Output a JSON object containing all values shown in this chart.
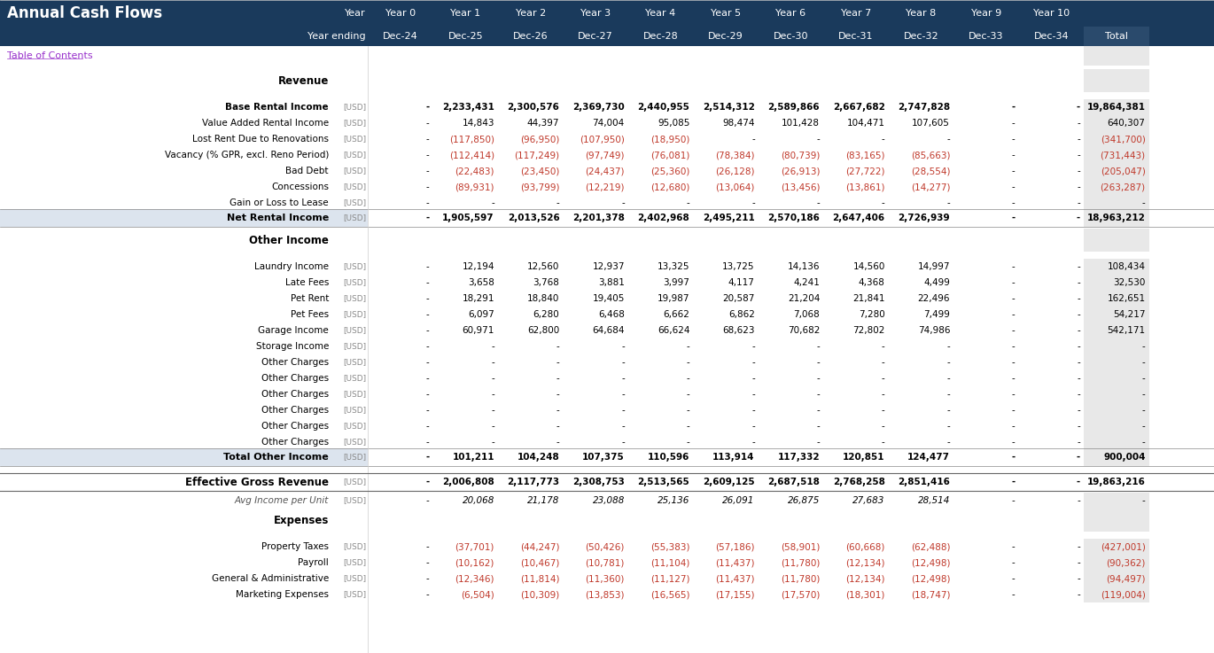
{
  "title": "Annual Cash Flows",
  "header_bg": "#1a3a5c",
  "header_text_color": "#ffffff",
  "subheader_bg": "#1a3a5c",
  "total_col_bg": "#e8e8e8",
  "subtotal_bg": "#d0d8e4",
  "section_header_color": "#1a3a5c",
  "link_color": "#9933cc",
  "negative_color": "#c0392b",
  "normal_color": "#000000",
  "bold_rows_bg": "#c8d4e0",
  "col_headers_row1": [
    "",
    "Year",
    "Year 0",
    "Year 1",
    "Year 2",
    "Year 3",
    "Year 4",
    "Year 5",
    "Year 6",
    "Year 7",
    "Year 8",
    "Year 9",
    "Year 10",
    ""
  ],
  "col_headers_row2": [
    "",
    "Year ending",
    "Dec-24",
    "Dec-25",
    "Dec-26",
    "Dec-27",
    "Dec-28",
    "Dec-29",
    "Dec-30",
    "Dec-31",
    "Dec-32",
    "Dec-33",
    "Dec-34",
    "Total"
  ],
  "rows": [
    {
      "label": "Table of Contents",
      "type": "link",
      "unit": "",
      "values": [
        "",
        "",
        "",
        "",
        "",
        "",
        "",
        "",
        "",
        "",
        "",
        ""
      ]
    },
    {
      "label": "",
      "type": "spacer",
      "unit": "",
      "values": [
        "",
        "",
        "",
        "",
        "",
        "",
        "",
        "",
        "",
        "",
        "",
        ""
      ]
    },
    {
      "label": "Revenue",
      "type": "section_header",
      "unit": "",
      "values": [
        "",
        "",
        "",
        "",
        "",
        "",
        "",
        "",
        "",
        "",
        "",
        ""
      ]
    },
    {
      "label": "Base Rental Income",
      "type": "data_bold",
      "unit": "[USD]",
      "values": [
        "-",
        "2,233,431",
        "2,300,576",
        "2,369,730",
        "2,440,955",
        "2,514,312",
        "2,589,866",
        "2,667,682",
        "2,747,828",
        "-",
        "-",
        "19,864,381"
      ]
    },
    {
      "label": "Value Added Rental Income",
      "type": "data",
      "unit": "[USD]",
      "values": [
        "-",
        "14,843",
        "44,397",
        "74,004",
        "95,085",
        "98,474",
        "101,428",
        "104,471",
        "107,605",
        "-",
        "-",
        "640,307"
      ]
    },
    {
      "label": "Lost Rent Due to Renovations",
      "type": "data",
      "unit": "[USD]",
      "values": [
        "-",
        "(117,850)",
        "(96,950)",
        "(107,950)",
        "(18,950)",
        "-",
        "-",
        "-",
        "-",
        "-",
        "-",
        "(341,700)"
      ]
    },
    {
      "label": "Vacancy (% GPR, excl. Reno Period)",
      "type": "data",
      "unit": "[USD]",
      "values": [
        "-",
        "(112,414)",
        "(117,249)",
        "(97,749)",
        "(76,081)",
        "(78,384)",
        "(80,739)",
        "(83,165)",
        "(85,663)",
        "-",
        "-",
        "(731,443)"
      ]
    },
    {
      "label": "Bad Debt",
      "type": "data",
      "unit": "[USD]",
      "values": [
        "-",
        "(22,483)",
        "(23,450)",
        "(24,437)",
        "(25,360)",
        "(26,128)",
        "(26,913)",
        "(27,722)",
        "(28,554)",
        "-",
        "-",
        "(205,047)"
      ]
    },
    {
      "label": "Concessions",
      "type": "data",
      "unit": "[USD]",
      "values": [
        "-",
        "(89,931)",
        "(93,799)",
        "(12,219)",
        "(12,680)",
        "(13,064)",
        "(13,456)",
        "(13,861)",
        "(14,277)",
        "-",
        "-",
        "(263,287)"
      ]
    },
    {
      "label": "Gain or Loss to Lease",
      "type": "data",
      "unit": "[USD]",
      "values": [
        "-",
        "-",
        "-",
        "-",
        "-",
        "-",
        "-",
        "-",
        "-",
        "-",
        "-",
        "-"
      ]
    },
    {
      "label": "Net Rental Income",
      "type": "subtotal",
      "unit": "[USD]",
      "values": [
        "-",
        "1,905,597",
        "2,013,526",
        "2,201,378",
        "2,402,968",
        "2,495,211",
        "2,570,186",
        "2,647,406",
        "2,726,939",
        "-",
        "-",
        "18,963,212"
      ]
    },
    {
      "label": "",
      "type": "spacer",
      "unit": "",
      "values": [
        "",
        "",
        "",
        "",
        "",
        "",
        "",
        "",
        "",
        "",
        "",
        ""
      ]
    },
    {
      "label": "Other Income",
      "type": "section_header",
      "unit": "",
      "values": [
        "",
        "",
        "",
        "",
        "",
        "",
        "",
        "",
        "",
        "",
        "",
        ""
      ]
    },
    {
      "label": "Laundry Income",
      "type": "data",
      "unit": "[USD]",
      "values": [
        "-",
        "12,194",
        "12,560",
        "12,937",
        "13,325",
        "13,725",
        "14,136",
        "14,560",
        "14,997",
        "-",
        "-",
        "108,434"
      ]
    },
    {
      "label": "Late Fees",
      "type": "data",
      "unit": "[USD]",
      "values": [
        "-",
        "3,658",
        "3,768",
        "3,881",
        "3,997",
        "4,117",
        "4,241",
        "4,368",
        "4,499",
        "-",
        "-",
        "32,530"
      ]
    },
    {
      "label": "Pet Rent",
      "type": "data",
      "unit": "[USD]",
      "values": [
        "-",
        "18,291",
        "18,840",
        "19,405",
        "19,987",
        "20,587",
        "21,204",
        "21,841",
        "22,496",
        "-",
        "-",
        "162,651"
      ]
    },
    {
      "label": "Pet Fees",
      "type": "data",
      "unit": "[USD]",
      "values": [
        "-",
        "6,097",
        "6,280",
        "6,468",
        "6,662",
        "6,862",
        "7,068",
        "7,280",
        "7,499",
        "-",
        "-",
        "54,217"
      ]
    },
    {
      "label": "Garage Income",
      "type": "data",
      "unit": "[USD]",
      "values": [
        "-",
        "60,971",
        "62,800",
        "64,684",
        "66,624",
        "68,623",
        "70,682",
        "72,802",
        "74,986",
        "-",
        "-",
        "542,171"
      ]
    },
    {
      "label": "Storage Income",
      "type": "data",
      "unit": "[USD]",
      "values": [
        "-",
        "-",
        "-",
        "-",
        "-",
        "-",
        "-",
        "-",
        "-",
        "-",
        "-",
        "-"
      ]
    },
    {
      "label": "Other Charges",
      "type": "data",
      "unit": "[USD]",
      "values": [
        "-",
        "-",
        "-",
        "-",
        "-",
        "-",
        "-",
        "-",
        "-",
        "-",
        "-",
        "-"
      ]
    },
    {
      "label": "Other Charges",
      "type": "data",
      "unit": "[USD]",
      "values": [
        "-",
        "-",
        "-",
        "-",
        "-",
        "-",
        "-",
        "-",
        "-",
        "-",
        "-",
        "-"
      ]
    },
    {
      "label": "Other Charges",
      "type": "data",
      "unit": "[USD]",
      "values": [
        "-",
        "-",
        "-",
        "-",
        "-",
        "-",
        "-",
        "-",
        "-",
        "-",
        "-",
        "-"
      ]
    },
    {
      "label": "Other Charges",
      "type": "data",
      "unit": "[USD]",
      "values": [
        "-",
        "-",
        "-",
        "-",
        "-",
        "-",
        "-",
        "-",
        "-",
        "-",
        "-",
        "-"
      ]
    },
    {
      "label": "Other Charges",
      "type": "data",
      "unit": "[USD]",
      "values": [
        "-",
        "-",
        "-",
        "-",
        "-",
        "-",
        "-",
        "-",
        "-",
        "-",
        "-",
        "-"
      ]
    },
    {
      "label": "Other Charges",
      "type": "data",
      "unit": "[USD]",
      "values": [
        "-",
        "-",
        "-",
        "-",
        "-",
        "-",
        "-",
        "-",
        "-",
        "-",
        "-",
        "-"
      ]
    },
    {
      "label": "Total Other Income",
      "type": "subtotal",
      "unit": "[USD]",
      "values": [
        "-",
        "101,211",
        "104,248",
        "107,375",
        "110,596",
        "113,914",
        "117,332",
        "120,851",
        "124,477",
        "-",
        "-",
        "900,004"
      ]
    },
    {
      "label": "",
      "type": "spacer",
      "unit": "",
      "values": [
        "",
        "",
        "",
        "",
        "",
        "",
        "",
        "",
        "",
        "",
        "",
        ""
      ]
    },
    {
      "label": "Effective Gross Revenue",
      "type": "total",
      "unit": "[USD]",
      "values": [
        "-",
        "2,006,808",
        "2,117,773",
        "2,308,753",
        "2,513,565",
        "2,609,125",
        "2,687,518",
        "2,768,258",
        "2,851,416",
        "-",
        "-",
        "19,863,216"
      ]
    },
    {
      "label": "Avg Income per Unit",
      "type": "italic",
      "unit": "[USD]",
      "values": [
        "-",
        "20,068",
        "21,178",
        "23,088",
        "25,136",
        "26,091",
        "26,875",
        "27,683",
        "28,514",
        "-",
        "-",
        "-"
      ]
    },
    {
      "label": "",
      "type": "spacer",
      "unit": "",
      "values": [
        "",
        "",
        "",
        "",
        "",
        "",
        "",
        "",
        "",
        "",
        "",
        ""
      ]
    },
    {
      "label": "Expenses",
      "type": "section_header",
      "unit": "",
      "values": [
        "",
        "",
        "",
        "",
        "",
        "",
        "",
        "",
        "",
        "",
        "",
        ""
      ]
    },
    {
      "label": "Property Taxes",
      "type": "data",
      "unit": "[USD]",
      "values": [
        "-",
        "(37,701)",
        "(44,247)",
        "(50,426)",
        "(55,383)",
        "(57,186)",
        "(58,901)",
        "(60,668)",
        "(62,488)",
        "-",
        "-",
        "(427,001)"
      ]
    },
    {
      "label": "Payroll",
      "type": "data",
      "unit": "[USD]",
      "values": [
        "-",
        "(10,162)",
        "(10,467)",
        "(10,781)",
        "(11,104)",
        "(11,437)",
        "(11,780)",
        "(12,134)",
        "(12,498)",
        "-",
        "-",
        "(90,362)"
      ]
    },
    {
      "label": "General & Administrative",
      "type": "data",
      "unit": "[USD]",
      "values": [
        "-",
        "(12,346)",
        "(11,814)",
        "(11,360)",
        "(11,127)",
        "(11,437)",
        "(11,780)",
        "(12,134)",
        "(12,498)",
        "-",
        "-",
        "(94,497)"
      ]
    },
    {
      "label": "Marketing Expenses",
      "type": "data",
      "unit": "[USD]",
      "values": [
        "-",
        "(6,504)",
        "(10,309)",
        "(13,853)",
        "(16,565)",
        "(17,155)",
        "(17,570)",
        "(18,301)",
        "(18,747)",
        "-",
        "-",
        "(119,004)"
      ]
    }
  ]
}
